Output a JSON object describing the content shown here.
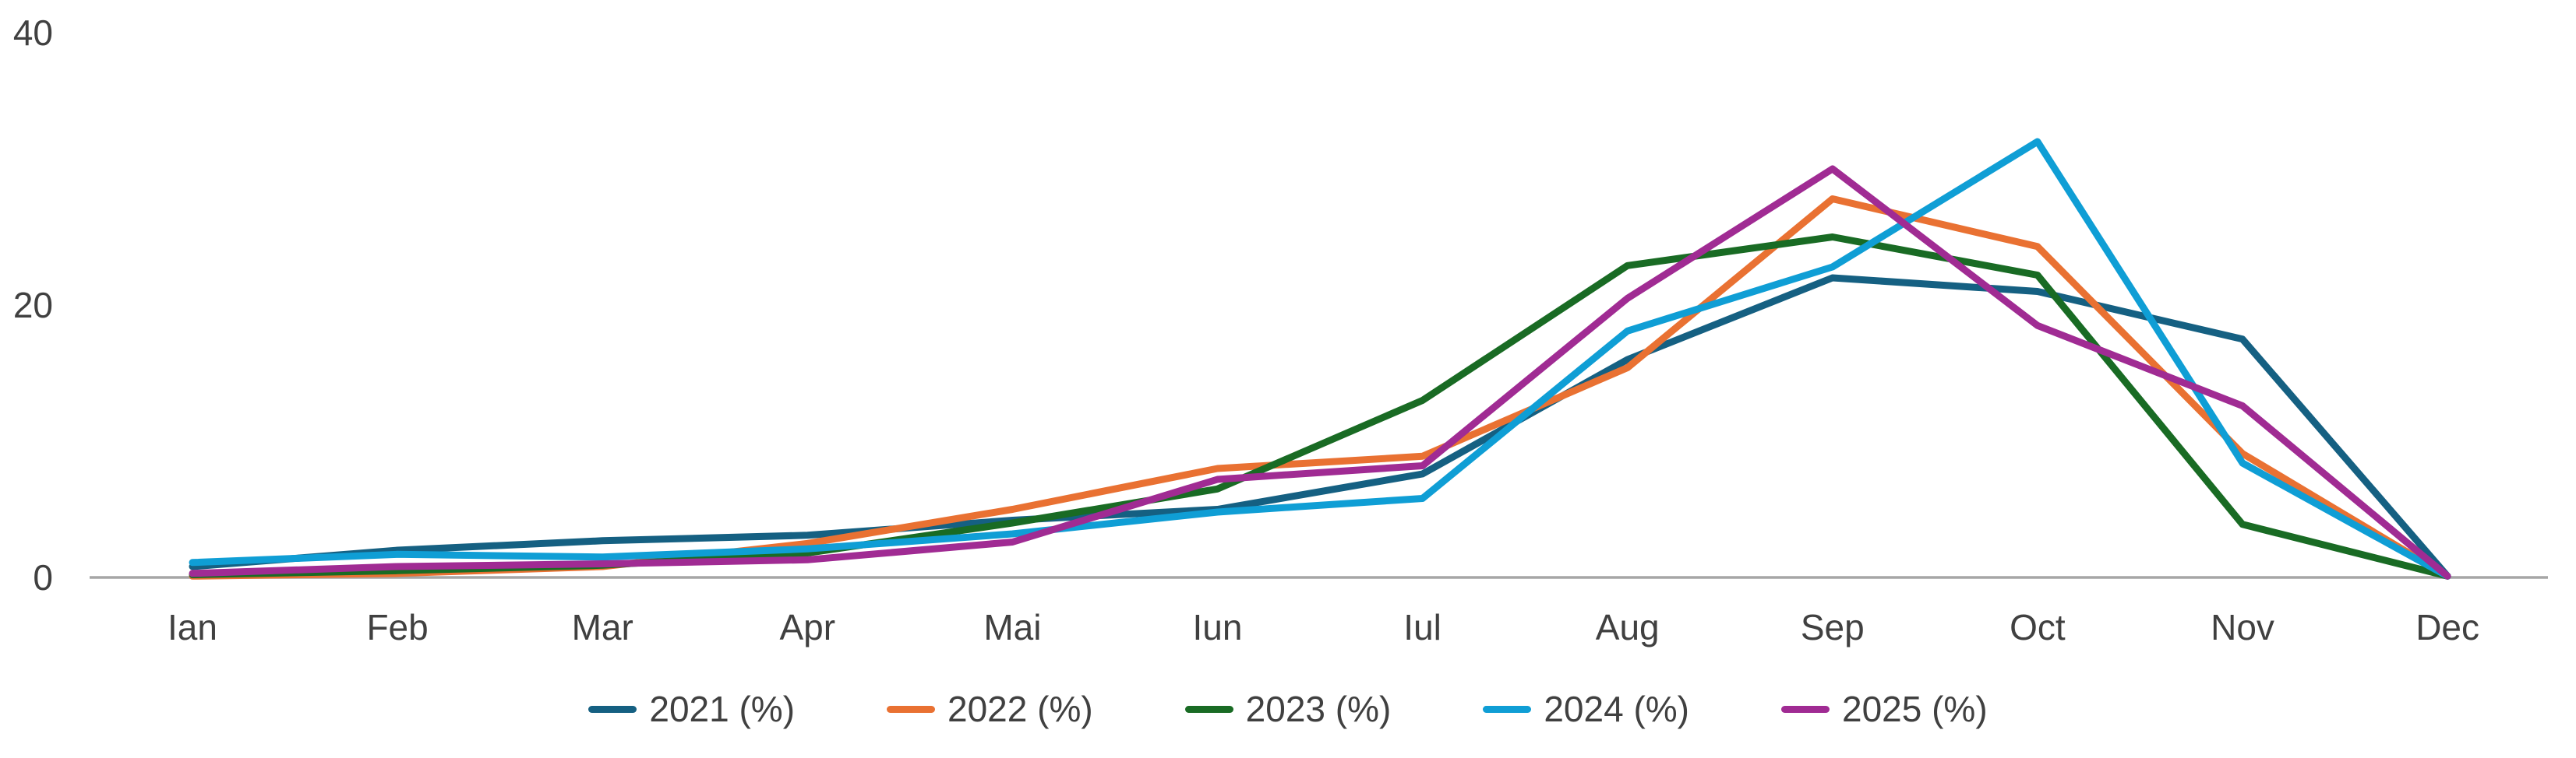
{
  "chart_data": {
    "type": "line",
    "title": "",
    "xlabel": "",
    "ylabel": "",
    "categories": [
      "Ian",
      "Feb",
      "Mar",
      "Apr",
      "Mai",
      "Iun",
      "Iul",
      "Aug",
      "Sep",
      "Oct",
      "Nov",
      "Dec"
    ],
    "series": [
      {
        "name": "2021 (%)",
        "color": "#156082",
        "values": [
          0.8,
          2.0,
          2.7,
          3.1,
          4.2,
          5.0,
          7.6,
          16.0,
          22.0,
          21.0,
          17.5,
          0.1
        ]
      },
      {
        "name": "2022 (%)",
        "color": "#E97132",
        "values": [
          0.1,
          0.3,
          0.8,
          2.5,
          5.0,
          8.0,
          8.9,
          15.4,
          27.8,
          24.3,
          9.1,
          0.1
        ]
      },
      {
        "name": "2023 (%)",
        "color": "#196B24",
        "values": [
          0.2,
          0.5,
          0.9,
          1.8,
          4.0,
          6.5,
          13.0,
          22.9,
          25.0,
          22.2,
          3.9,
          0.1
        ]
      },
      {
        "name": "2024 (%)",
        "color": "#0F9ED5",
        "values": [
          1.1,
          1.7,
          1.5,
          2.1,
          3.2,
          4.8,
          5.8,
          18.1,
          22.8,
          32.0,
          8.4,
          0.1
        ]
      },
      {
        "name": "2025 (%)",
        "color": "#A02B93",
        "values": [
          0.3,
          0.8,
          1.0,
          1.3,
          2.6,
          7.2,
          8.2,
          20.5,
          30.0,
          18.5,
          12.6,
          0.1
        ]
      }
    ],
    "ylim": [
      0,
      40
    ],
    "yticks": [
      0,
      20,
      40
    ],
    "grid": false,
    "legend_position": "bottom"
  },
  "colors": {
    "axis_line": "#A6A6A6",
    "label_text": "#404040",
    "background": "#FFFFFF"
  }
}
